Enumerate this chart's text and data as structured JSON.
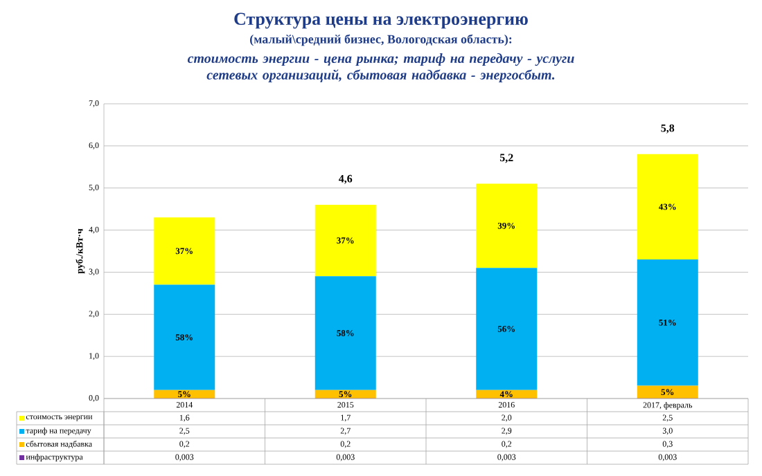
{
  "chart_data": {
    "type": "bar",
    "stacked": true,
    "title": "Структура цены на электроэнергию",
    "subtitle": "(малый\\средний бизнес, Вологодская область):",
    "annotations": [
      "стоимость энергии - цена рынка; тариф на передачу - услуги сетевых организаций, сбытовая надбавка - энергосбыт.",
      "5%",
      "58%",
      "37%",
      "5%",
      "58%",
      "37%",
      "4%",
      "56%",
      "39%",
      "5%",
      "51%",
      "43%"
    ],
    "ylabel": "руб./кВт·ч",
    "categories": [
      "2014",
      "2015",
      "2016",
      "2017, февраль"
    ],
    "series": [
      {
        "name": "инфраструктура",
        "color": "#7030a0",
        "values": [
          0.003,
          0.003,
          0.003,
          0.003
        ],
        "value_labels": [
          "0,003",
          "0,003",
          "0,003",
          "0,003"
        ]
      },
      {
        "name": "сбытовая надбавка",
        "color": "#ffc000",
        "values": [
          0.2,
          0.2,
          0.2,
          0.3
        ],
        "value_labels": [
          "0,2",
          "0,2",
          "0,2",
          "0,3"
        ]
      },
      {
        "name": "тариф на передачу",
        "color": "#00b0f0",
        "values": [
          2.5,
          2.7,
          2.9,
          3.0
        ],
        "value_labels": [
          "2,5",
          "2,7",
          "2,9",
          "3,0"
        ]
      },
      {
        "name": "стоимость энергии",
        "color": "#ffff00",
        "values": [
          1.6,
          1.7,
          2.0,
          2.5
        ],
        "value_labels": [
          "1,6",
          "1,7",
          "2,0",
          "2,5"
        ]
      }
    ],
    "totals": [
      null,
      "4,6",
      "5,2",
      "5,8"
    ],
    "ylim": [
      0,
      7
    ],
    "yticks": [
      {
        "value": 0,
        "label": "0,0"
      },
      {
        "value": 1,
        "label": "1,0"
      },
      {
        "value": 2,
        "label": "2,0"
      },
      {
        "value": 3,
        "label": "3,0"
      },
      {
        "value": 4,
        "label": "4,0"
      },
      {
        "value": 5,
        "label": "5,0"
      },
      {
        "value": 6,
        "label": "6,0"
      },
      {
        "value": 7,
        "label": "7,0"
      }
    ],
    "grid": "y",
    "legend": "bottom"
  }
}
